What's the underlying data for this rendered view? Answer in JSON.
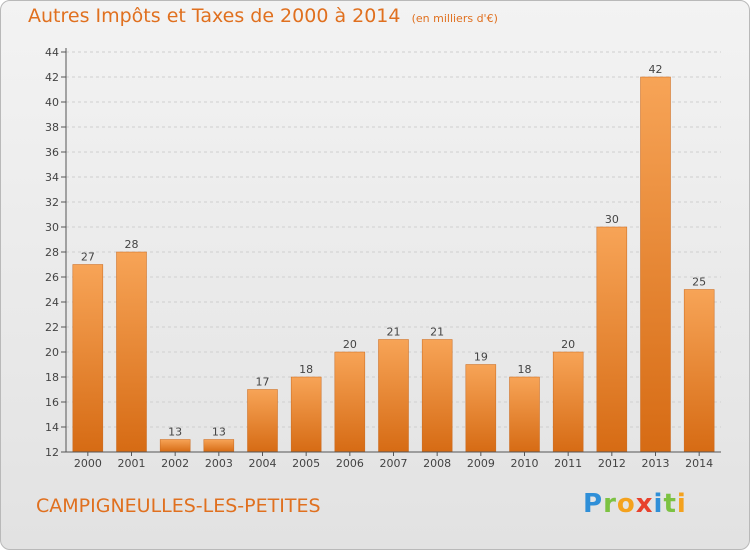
{
  "chart_data": {
    "type": "bar",
    "title": "Autres Impôts et Taxes de 2000 à 2014",
    "subtitle": "(en milliers d'€)",
    "categories": [
      "2000",
      "2001",
      "2002",
      "2003",
      "2004",
      "2005",
      "2006",
      "2007",
      "2008",
      "2009",
      "2010",
      "2011",
      "2012",
      "2013",
      "2014"
    ],
    "values": [
      27,
      28,
      13,
      13,
      17,
      18,
      20,
      21,
      21,
      19,
      18,
      20,
      30,
      42,
      25
    ],
    "ylim": [
      12,
      44
    ],
    "yticks": [
      12,
      14,
      16,
      18,
      20,
      22,
      24,
      26,
      28,
      30,
      32,
      34,
      36,
      38,
      40,
      42,
      44
    ],
    "xlabel": "",
    "ylabel": "",
    "grid": true,
    "bar_color": "#f0862a",
    "bar_gradient": [
      "#f7a457",
      "#d66b14"
    ]
  },
  "footer": {
    "commune": "CAMPIGNEULLES-LES-PETITES",
    "logo_letters": [
      "P",
      "r",
      "o",
      "x",
      "i",
      "t",
      "i"
    ],
    "logo_colors": [
      "#2f8fd8",
      "#7cc242",
      "#f4a21e",
      "#e8412c",
      "#2f8fd8",
      "#7cc242",
      "#f4a21e"
    ]
  }
}
